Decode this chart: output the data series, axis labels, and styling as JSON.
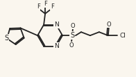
{
  "bg_color": "#faf6ee",
  "bond_color": "#222222",
  "atom_color": "#222222",
  "lw": 1.3,
  "fs": 6.5,
  "figsize": [
    1.96,
    1.11
  ],
  "dpi": 100,
  "xlim": [
    0,
    196
  ],
  "ylim": [
    0,
    111
  ]
}
